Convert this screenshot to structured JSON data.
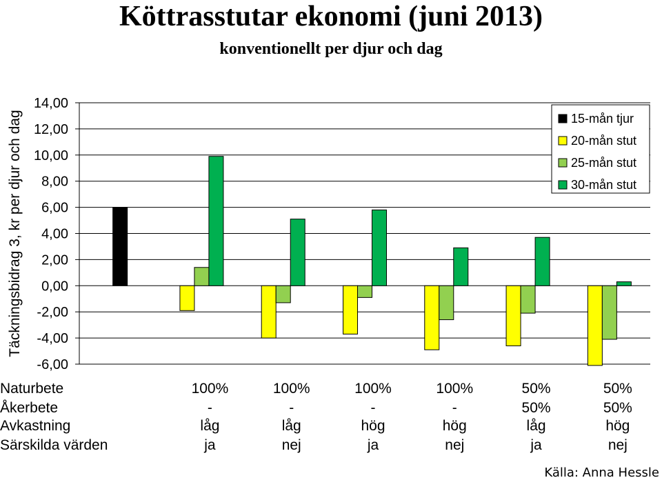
{
  "chart_data": {
    "type": "bar",
    "title": "Köttrasstutar ekonomi (juni 2013)",
    "subtitle": "konventionellt per djur och dag",
    "ylabel": "Täckningsbidrag 3, kr per djur och dag",
    "ylim": [
      -6,
      14
    ],
    "yticks": [
      "14,00",
      "12,00",
      "10,00",
      "8,00",
      "6,00",
      "4,00",
      "2,00",
      "0,00",
      "-2,00",
      "-4,00",
      "-6,00"
    ],
    "ytick_values": [
      14,
      12,
      10,
      8,
      6,
      4,
      2,
      0,
      -2,
      -4,
      -6
    ],
    "legend_position": "top-right",
    "grid": true,
    "groups": 7,
    "series": [
      {
        "name": "15-mån tjur",
        "color": "#000000",
        "values": [
          6.0,
          null,
          null,
          null,
          null,
          null,
          null
        ]
      },
      {
        "name": "20-mån stut",
        "color": "#ffff00",
        "values": [
          null,
          -1.9,
          -4.0,
          -3.7,
          -4.9,
          -4.6,
          -6.1
        ]
      },
      {
        "name": "25-mån stut",
        "color": "#92d050",
        "values": [
          null,
          1.4,
          -1.3,
          -0.9,
          -2.6,
          -2.1,
          -4.1
        ]
      },
      {
        "name": "30-mån stut",
        "color": "#00b050",
        "values": [
          null,
          9.9,
          5.1,
          5.8,
          2.9,
          3.7,
          0.3
        ]
      }
    ],
    "table": {
      "rows": [
        {
          "label": "Naturbete",
          "values": [
            "",
            "100%",
            "100%",
            "100%",
            "100%",
            "50%",
            "50%"
          ]
        },
        {
          "label": "Åkerbete",
          "values": [
            "",
            "-",
            "-",
            "-",
            "-",
            "50%",
            "50%"
          ]
        },
        {
          "label": "Avkastning",
          "values": [
            "",
            "låg",
            "låg",
            "hög",
            "hög",
            "låg",
            "hög"
          ]
        },
        {
          "label": "Särskilda värden",
          "values": [
            "",
            "ja",
            "nej",
            "ja",
            "nej",
            "ja",
            "nej"
          ]
        }
      ]
    }
  },
  "source": "Källa: Anna Hessle"
}
